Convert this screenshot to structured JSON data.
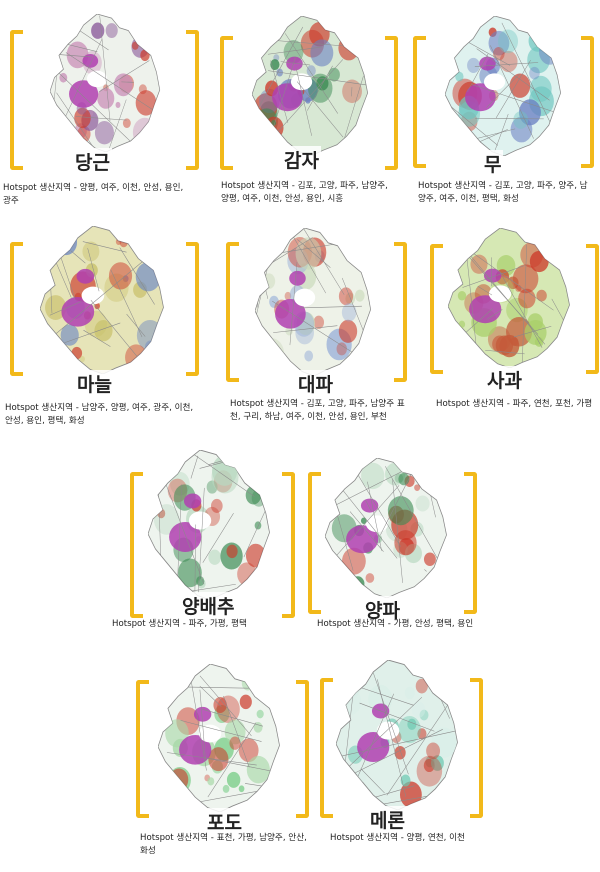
{
  "panels": [
    {
      "id": "carrot",
      "title": "당근",
      "desc": "Hotspot 생산지역 - 양평, 여주, 이천, 안성, 용인, 광주",
      "colors": [
        "#c98fb8",
        "#cc3a2a",
        "#8b5a9a"
      ],
      "base": "#eef2ec"
    },
    {
      "id": "potato",
      "title": "감자",
      "desc": "Hotspot 생산지역 - 김포, 고양, 파주, 남양주, 양평, 여주, 이천, 안성, 용인, 시흥",
      "colors": [
        "#3a8a52",
        "#cc3a2a",
        "#6a7fc2"
      ],
      "base": "#d8e8d4"
    },
    {
      "id": "radish",
      "title": "무",
      "desc": "Hotspot 생산지역 - 김포, 고양, 파주, 양주, 남양주, 여주, 이천, 평택, 화성",
      "colors": [
        "#6fc7c0",
        "#cc3a2a",
        "#6a7fc2"
      ],
      "base": "#dff2ef"
    },
    {
      "id": "garlic",
      "title": "마늘",
      "desc": "Hotspot 생산지역 - 남양주, 양평, 여주, 광주, 이천, 안성, 용인, 평택, 화성",
      "colors": [
        "#6a86c4",
        "#cc3a2a",
        "#c8c06a"
      ],
      "base": "#e6e4b8"
    },
    {
      "id": "greenonion",
      "title": "대파",
      "desc": "Hotspot 생산지역 - 김포, 고양, 파주, 남양주 표천, 구리, 하남, 여주, 이천, 안성, 용인, 부천",
      "colors": [
        "#9ab0d8",
        "#cc3a2a",
        "#c8d8b8"
      ],
      "base": "#eef2e8"
    },
    {
      "id": "apple",
      "title": "사과",
      "desc": "Hotspot 생산지역 - 파주, 연천, 포천, 가평",
      "colors": [
        "#cc3a2a",
        "#a8cf6a",
        "#c45a3a"
      ],
      "base": "#d6e8b4"
    },
    {
      "id": "cabbage",
      "title": "양배추",
      "desc": "Hotspot 생산지역 - 파주, 가평, 평택",
      "colors": [
        "#3a8a52",
        "#cc3a2a",
        "#b8d8c0"
      ],
      "base": "#eef4ee"
    },
    {
      "id": "onion",
      "title": "양파",
      "desc": "Hotspot 생산지역 - 가평, 안성, 평택, 용인",
      "colors": [
        "#3a8a52",
        "#cc3a2a",
        "#b8d8c0"
      ],
      "base": "#eef4ee"
    },
    {
      "id": "grape",
      "title": "포도",
      "desc": "Hotspot 생산지역 - 표천, 가평, 남양주, 안산, 화성",
      "colors": [
        "#6ac87a",
        "#cc3a2a",
        "#a8d8a8"
      ],
      "base": "#eef4ee"
    },
    {
      "id": "melon",
      "title": "메론",
      "desc": "Hotspot 생산지역 - 양평, 연천, 이천",
      "colors": [
        "#cc3a2a",
        "#6ac8b0",
        "#d8eee8"
      ],
      "base": "#e0f0ea"
    }
  ]
}
